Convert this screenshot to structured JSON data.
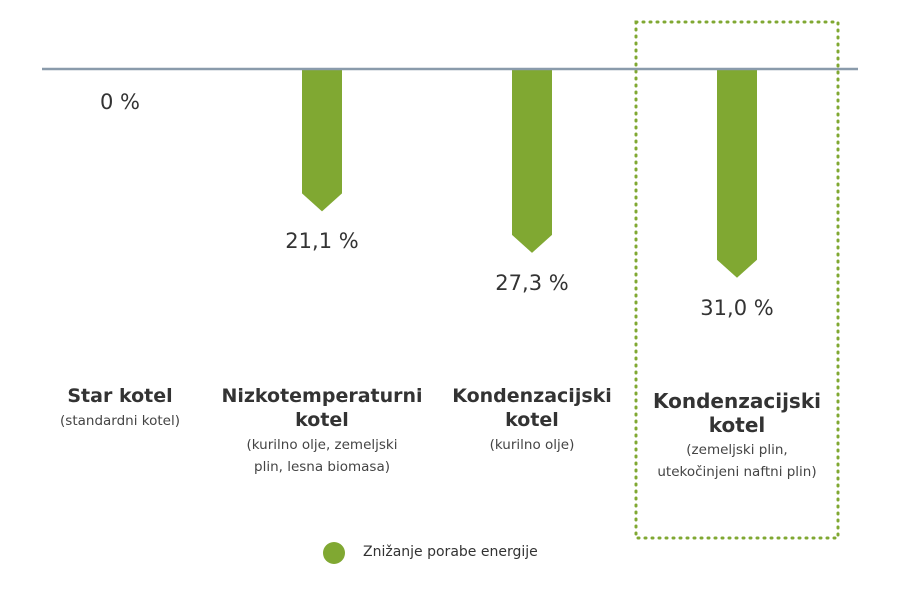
{
  "chart_data": {
    "type": "drop-bar",
    "categories": [
      "Star kotel",
      "Nizkotemperaturni kotel",
      "Kondenzacijski kotel",
      "Kondenzacijski kotel"
    ],
    "category_notes": [
      "(standardni kotel)",
      "(kurilno olje, zemeljski plin, lesna biomasa)",
      "(kurilno olje)",
      "(zemeljski plin, utekočinjeni naftni plin)"
    ],
    "series": [
      {
        "name": "Znižanje porabe energije",
        "color": "#80a832",
        "values": [
          0,
          21.1,
          27.3,
          31.0
        ],
        "value_labels": [
          "0 %",
          "21,1 %",
          "27,3 %",
          "31,0 %"
        ]
      }
    ],
    "highlight": 3,
    "baseline_color": "#8a9bab"
  }
}
